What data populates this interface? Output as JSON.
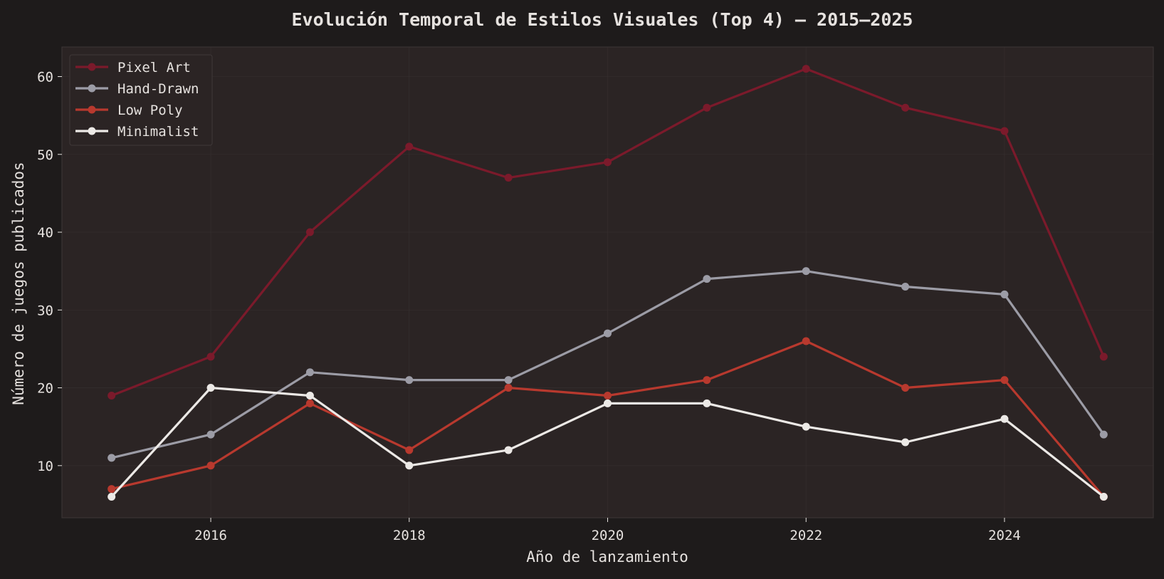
{
  "colors": {
    "figure_background": "#1e1b1b",
    "plot_background": "#2b2424",
    "plot_border": "#3a3434",
    "grid": "#3a3434",
    "text": "#e6e2df"
  },
  "chart_data": {
    "type": "line",
    "title": "Evolución Temporal de Estilos Visuales (Top 4) — 2015–2025",
    "xlabel": "Año de lanzamiento",
    "ylabel": "Número de juegos publicados",
    "x": [
      2015,
      2016,
      2017,
      2018,
      2019,
      2020,
      2021,
      2022,
      2023,
      2024,
      2025
    ],
    "xlim": [
      2014.5,
      2025.5
    ],
    "ylim": [
      3.3,
      63.8
    ],
    "xticks": [
      2016,
      2018,
      2020,
      2022,
      2024
    ],
    "yticks": [
      10,
      20,
      30,
      40,
      50,
      60
    ],
    "grid": true,
    "legend_position": "top-left",
    "series": [
      {
        "name": "Pixel Art",
        "color": "#7b1a2b",
        "values": [
          19,
          24,
          40,
          51,
          47,
          49,
          56,
          61,
          56,
          53,
          24
        ]
      },
      {
        "name": "Hand-Drawn",
        "color": "#9c9ca6",
        "values": [
          11,
          14,
          22,
          21,
          21,
          27,
          34,
          35,
          33,
          32,
          14
        ]
      },
      {
        "name": "Low Poly",
        "color": "#b8392e",
        "values": [
          7,
          10,
          18,
          12,
          20,
          19,
          21,
          26,
          20,
          21,
          6
        ]
      },
      {
        "name": "Minimalist",
        "color": "#ece9e6",
        "values": [
          6,
          20,
          19,
          10,
          12,
          18,
          18,
          15,
          13,
          16,
          6
        ]
      }
    ]
  }
}
